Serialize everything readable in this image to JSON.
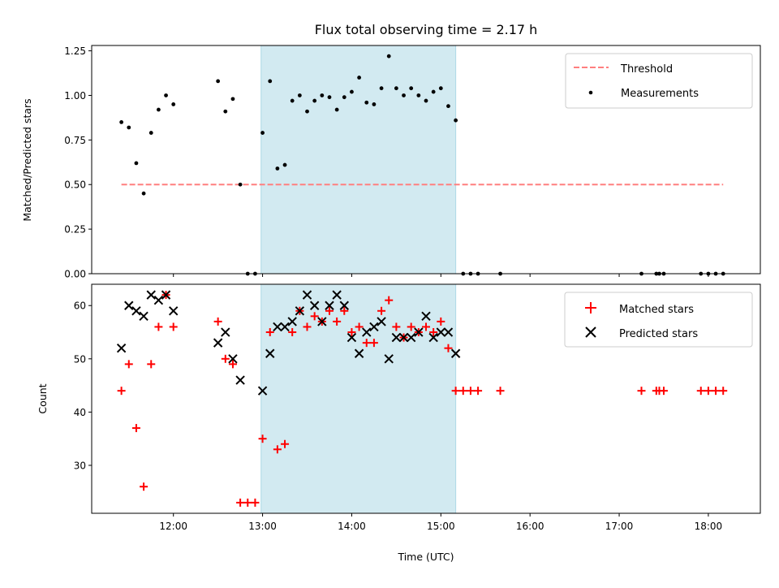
{
  "chart_data": [
    {
      "type": "scatter",
      "title": "Flux total observing time = 2.17 h",
      "xlabel": "",
      "ylabel": "Matched/Predicted stars",
      "xlim": [
        "11:05",
        "18:35"
      ],
      "ylim": [
        0,
        1.28
      ],
      "yticks": [
        "0.00",
        "0.25",
        "0.50",
        "0.75",
        "1.00",
        "1.25"
      ],
      "ytick_values": [
        0,
        0.25,
        0.5,
        0.75,
        1.0,
        1.25
      ],
      "grid": false,
      "legend_position": "top-right",
      "highlight_span": {
        "start": "12:59",
        "end": "15:10",
        "color": "#add8e6"
      },
      "threshold": {
        "name": "Threshold",
        "value": 0.5,
        "x_start": "11:25",
        "x_end": "18:10",
        "color": "#ff7f7f",
        "style": "dashed"
      },
      "series": [
        {
          "name": "Measurements",
          "color": "#000000",
          "marker": "dot",
          "x": [
            "11:25",
            "11:30",
            "11:35",
            "11:40",
            "11:45",
            "11:50",
            "11:55",
            "12:00",
            "12:30",
            "12:35",
            "12:40",
            "12:45",
            "12:50",
            "12:55",
            "13:00",
            "13:05",
            "13:10",
            "13:15",
            "13:20",
            "13:25",
            "13:30",
            "13:35",
            "13:40",
            "13:45",
            "13:50",
            "13:55",
            "14:00",
            "14:05",
            "14:10",
            "14:15",
            "14:20",
            "14:25",
            "14:30",
            "14:35",
            "14:40",
            "14:45",
            "14:50",
            "14:55",
            "15:00",
            "15:05",
            "15:10",
            "15:15",
            "15:20",
            "15:25",
            "15:40",
            "17:15",
            "17:25",
            "17:27",
            "17:30",
            "17:55",
            "18:00",
            "18:05",
            "18:10"
          ],
          "y": [
            0.85,
            0.82,
            0.62,
            0.45,
            0.79,
            0.92,
            1.0,
            0.95,
            1.08,
            0.91,
            0.98,
            0.5,
            0.0,
            0.0,
            0.79,
            1.08,
            0.59,
            0.61,
            0.97,
            1.0,
            0.91,
            0.97,
            1.0,
            0.99,
            0.92,
            0.99,
            1.02,
            1.1,
            0.96,
            0.95,
            1.04,
            1.22,
            1.04,
            1.0,
            1.04,
            1.0,
            0.97,
            1.02,
            1.04,
            0.94,
            0.86,
            0.0,
            0.0,
            0.0,
            0.0,
            0.0,
            0.0,
            0.0,
            0.0,
            0.0,
            0.0,
            0.0,
            0.0
          ]
        }
      ]
    },
    {
      "type": "scatter",
      "title": "",
      "xlabel": "Time (UTC)",
      "ylabel": "Count",
      "xlim": [
        "11:05",
        "18:35"
      ],
      "ylim": [
        21,
        64
      ],
      "xticks": [
        "12:00",
        "13:00",
        "14:00",
        "15:00",
        "16:00",
        "17:00",
        "18:00"
      ],
      "yticks": [
        "30",
        "40",
        "50",
        "60"
      ],
      "ytick_values": [
        30,
        40,
        50,
        60
      ],
      "grid": false,
      "legend_position": "top-right",
      "highlight_span": {
        "start": "12:59",
        "end": "15:10",
        "color": "#add8e6"
      },
      "series": [
        {
          "name": "Matched stars",
          "color": "#ff0000",
          "marker": "plus",
          "x": [
            "11:25",
            "11:30",
            "11:35",
            "11:40",
            "11:45",
            "11:50",
            "11:55",
            "12:00",
            "12:30",
            "12:35",
            "12:40",
            "12:45",
            "12:50",
            "12:55",
            "13:00",
            "13:05",
            "13:10",
            "13:15",
            "13:20",
            "13:25",
            "13:30",
            "13:35",
            "13:40",
            "13:45",
            "13:50",
            "13:55",
            "14:00",
            "14:05",
            "14:10",
            "14:15",
            "14:20",
            "14:25",
            "14:30",
            "14:35",
            "14:40",
            "14:45",
            "14:50",
            "14:55",
            "15:00",
            "15:05",
            "15:10",
            "15:15",
            "15:20",
            "15:25",
            "15:40",
            "17:15",
            "17:25",
            "17:27",
            "17:30",
            "17:55",
            "18:00",
            "18:05",
            "18:10"
          ],
          "y": [
            44,
            49,
            37,
            26,
            49,
            56,
            62,
            56,
            57,
            50,
            49,
            23,
            23,
            23,
            35,
            55,
            33,
            34,
            55,
            59,
            56,
            58,
            57,
            59,
            57,
            59,
            55,
            56,
            53,
            53,
            59,
            61,
            56,
            54,
            56,
            55,
            56,
            55,
            57,
            52,
            44,
            44,
            44,
            44,
            44,
            44,
            44,
            44,
            44,
            44,
            44,
            44,
            44
          ]
        },
        {
          "name": "Predicted stars",
          "color": "#000000",
          "marker": "x",
          "x": [
            "11:25",
            "11:30",
            "11:35",
            "11:40",
            "11:45",
            "11:50",
            "11:55",
            "12:00",
            "12:30",
            "12:35",
            "12:40",
            "12:45",
            "13:00",
            "13:05",
            "13:10",
            "13:15",
            "13:20",
            "13:25",
            "13:30",
            "13:35",
            "13:40",
            "13:45",
            "13:50",
            "13:55",
            "14:00",
            "14:05",
            "14:10",
            "14:15",
            "14:20",
            "14:25",
            "14:30",
            "14:35",
            "14:40",
            "14:45",
            "14:50",
            "14:55",
            "15:00",
            "15:05",
            "15:10"
          ],
          "y": [
            52,
            60,
            59,
            58,
            62,
            61,
            62,
            59,
            53,
            55,
            50,
            46,
            44,
            51,
            56,
            56,
            57,
            59,
            62,
            60,
            57,
            60,
            62,
            60,
            54,
            51,
            55,
            56,
            57,
            50,
            54,
            54,
            54,
            55,
            58,
            54,
            55,
            55,
            51
          ]
        }
      ]
    }
  ]
}
